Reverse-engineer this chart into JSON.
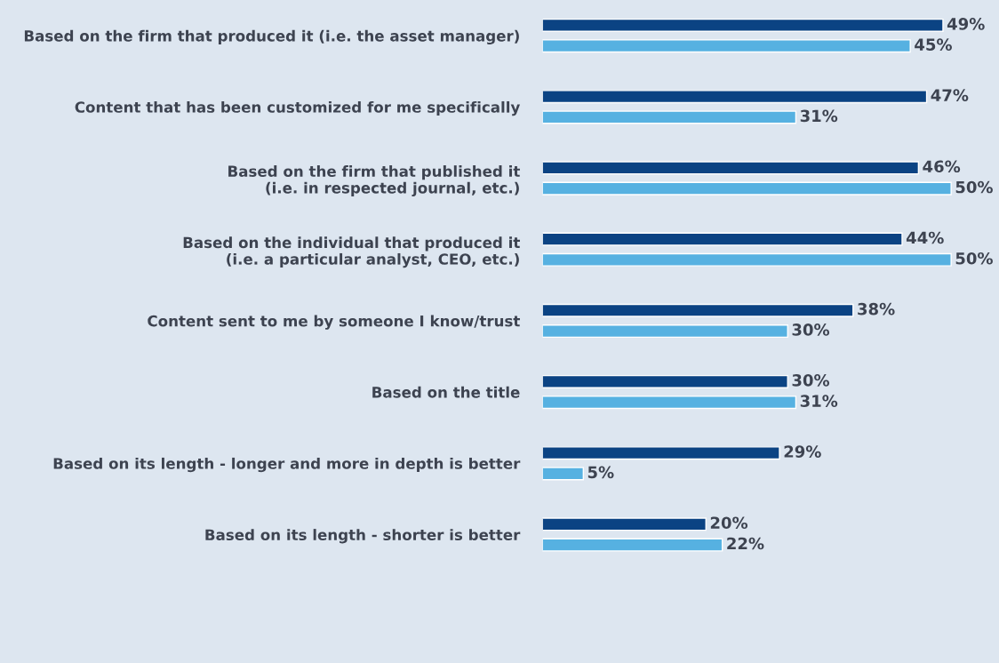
{
  "chart_data": {
    "type": "bar",
    "orientation": "horizontal",
    "categories": [
      "Based on the firm that produced it (i.e. the asset manager)",
      "Content that has been customized for me specifically",
      "Based on the firm that published it\n(i.e. in respected journal, etc.)",
      "Based on the individual that produced it\n(i.e. a particular analyst, CEO, etc.)",
      "Content sent to me by someone I know/trust",
      "Based on the title",
      "Based on its length - longer and more in depth is better",
      "Based on its length - shorter is better"
    ],
    "series": [
      {
        "color": "#0b4383",
        "values": [
          49,
          47,
          46,
          44,
          38,
          30,
          29,
          20
        ],
        "value_labels": [
          "49%",
          "47%",
          "46%",
          "44%",
          "38%",
          "30%",
          "29%",
          "20%"
        ]
      },
      {
        "color": "#56b1e1",
        "values": [
          45,
          31,
          50,
          50,
          30,
          31,
          5,
          22
        ],
        "value_labels": [
          "45%",
          "31%",
          "50%",
          "50%",
          "30%",
          "31%",
          "5%",
          "22%"
        ]
      }
    ],
    "tick_labels": "y",
    "grid": false,
    "legend": false
  }
}
